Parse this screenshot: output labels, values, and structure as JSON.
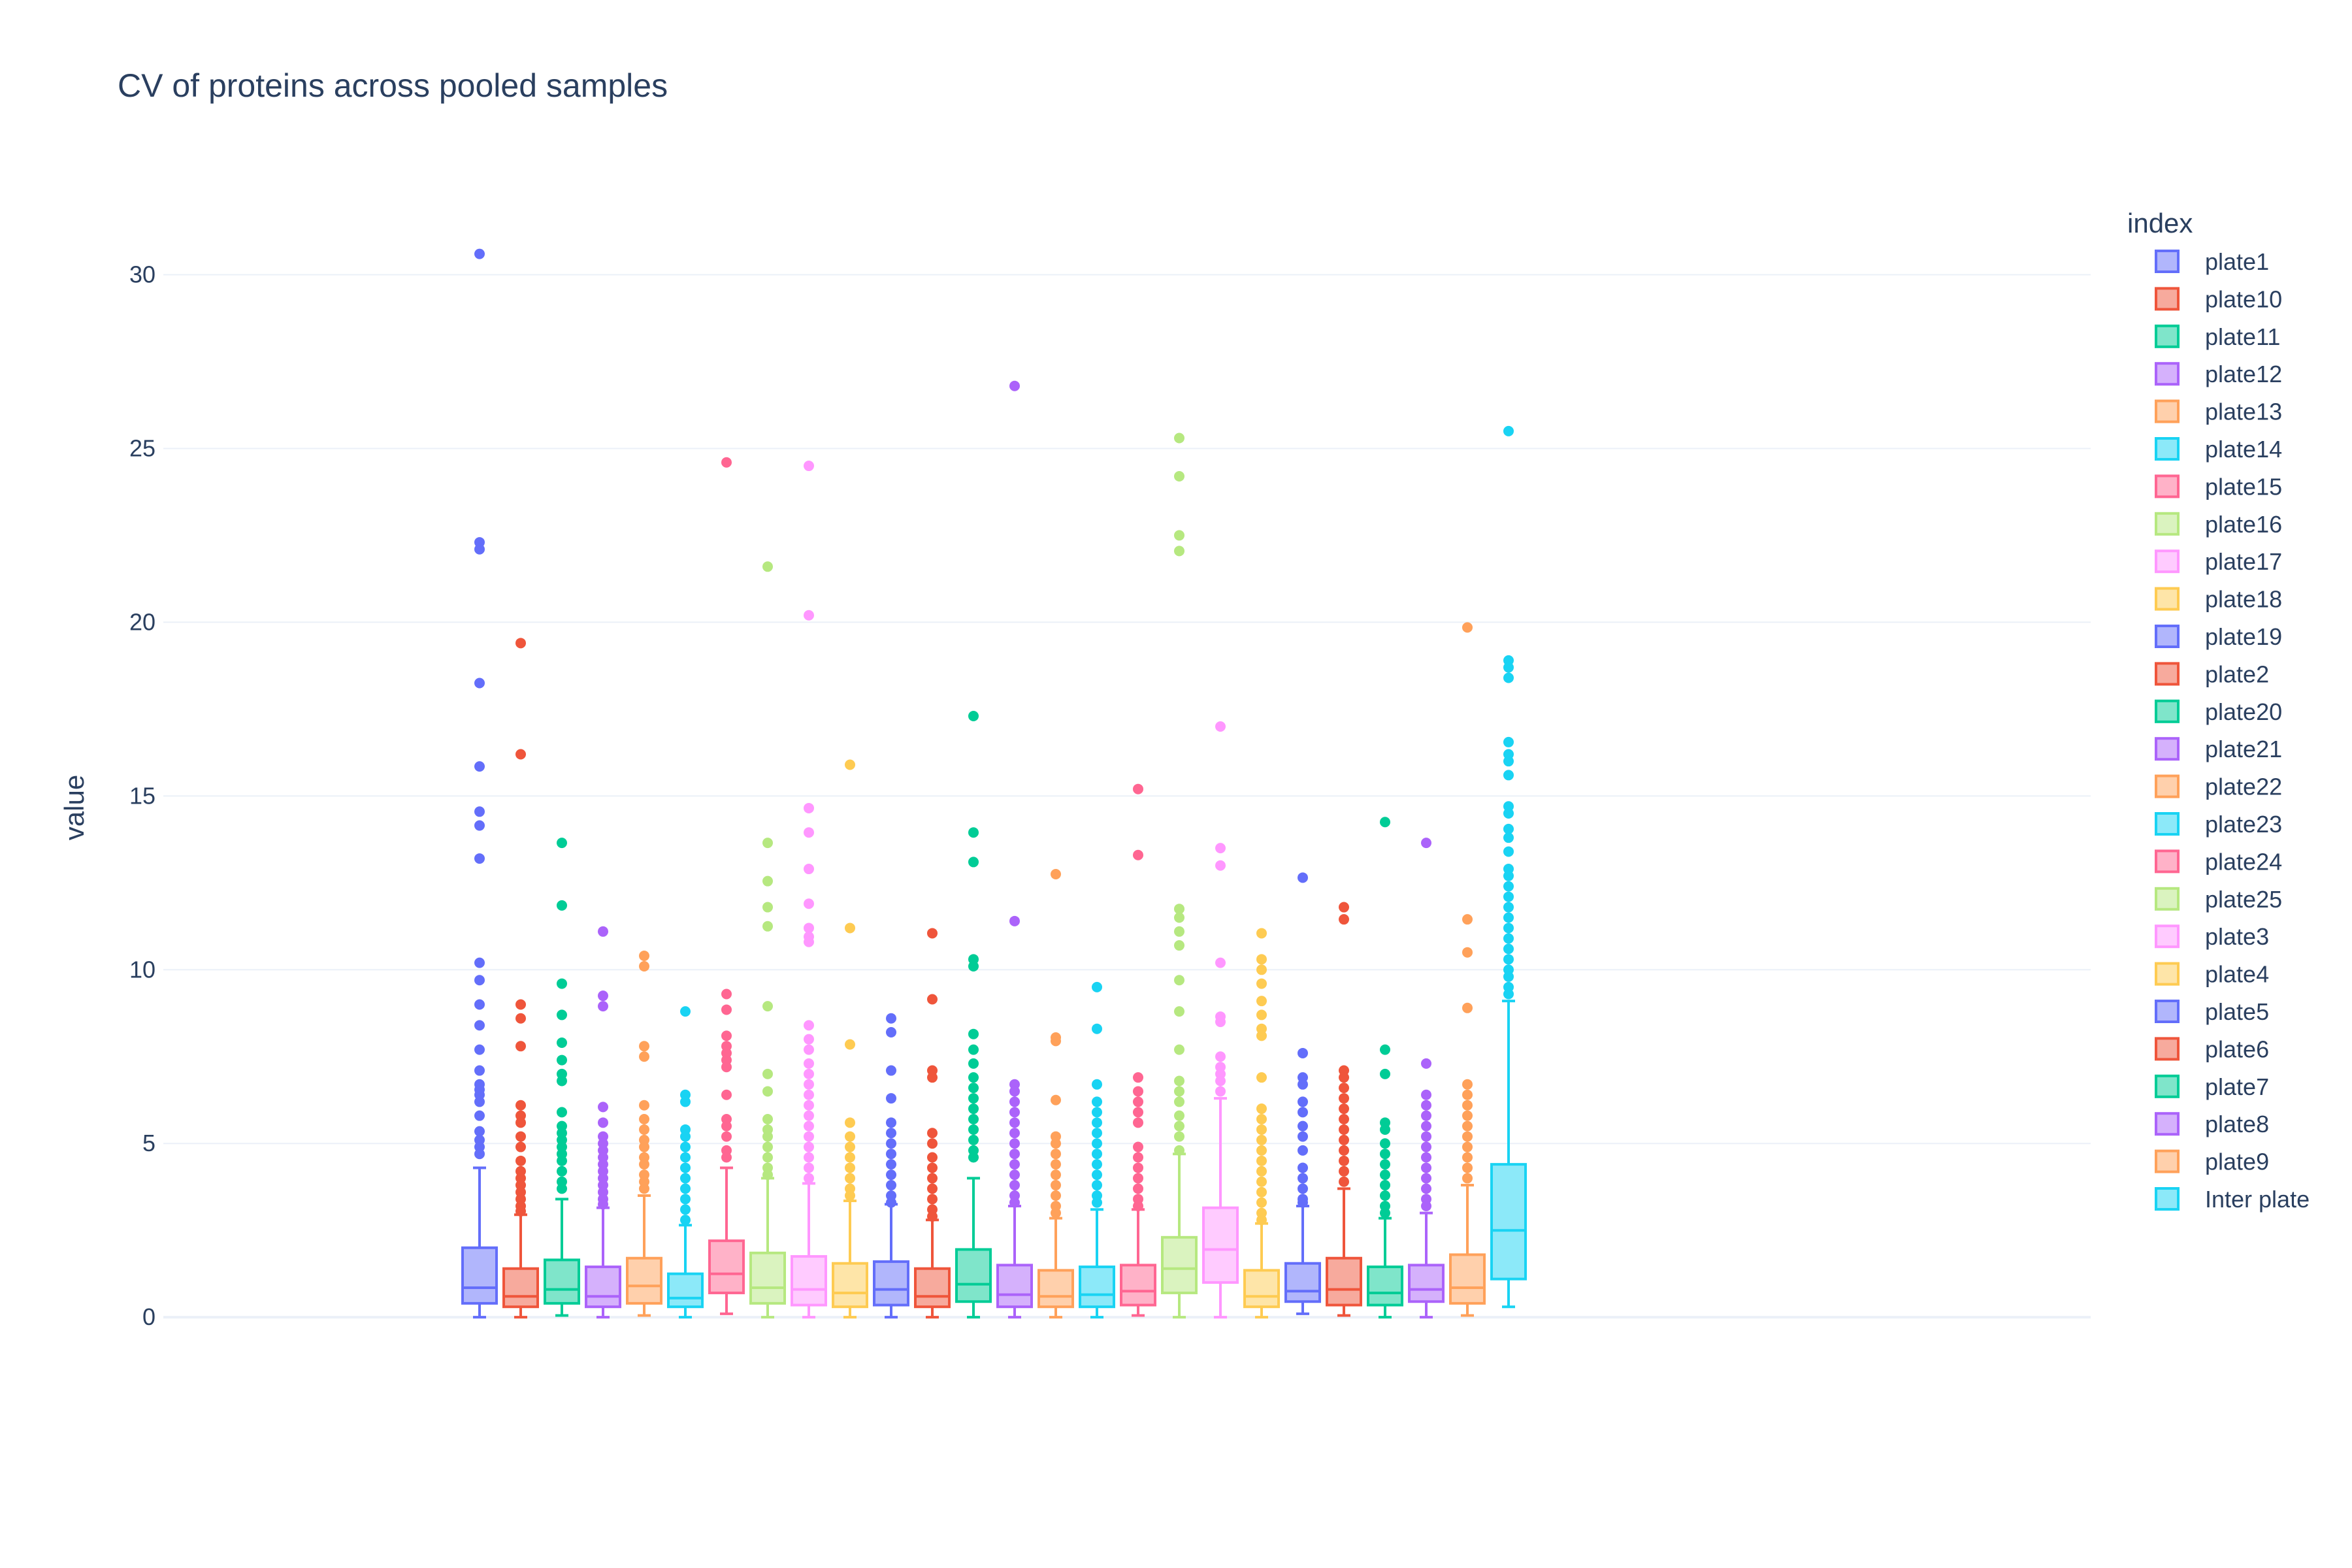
{
  "chart_data": {
    "type": "box",
    "title": "CV of proteins across pooled samples",
    "ylabel": "value",
    "xlabel": "",
    "ylim": [
      -1.2,
      33.3
    ],
    "yticks": [
      0,
      5,
      10,
      15,
      20,
      25,
      30
    ],
    "grid": true,
    "legend_title": "index",
    "legend_position": "right",
    "series": [
      {
        "name": "plate1",
        "color": "#636efa",
        "lower_whisker": 0.0,
        "q1": 0.4,
        "median": 0.85,
        "q3": 2.0,
        "upper_whisker": 4.3,
        "outliers": [
          30.6,
          22.3,
          22.1,
          18.25,
          15.85,
          14.55,
          14.15,
          13.2,
          10.2,
          9.7,
          9.0,
          8.4,
          7.7,
          7.1,
          6.7,
          6.55,
          6.4,
          6.2,
          5.8,
          5.35,
          5.1,
          4.9,
          4.7
        ]
      },
      {
        "name": "plate10",
        "color": "#EF553B",
        "lower_whisker": 0.0,
        "q1": 0.3,
        "median": 0.6,
        "q3": 1.4,
        "upper_whisker": 2.95,
        "outliers": [
          19.4,
          16.2,
          9.0,
          8.6,
          7.8,
          6.1,
          5.8,
          5.6,
          5.2,
          4.9,
          4.5,
          4.2,
          4.0,
          3.8,
          3.6,
          3.4,
          3.2,
          3.05
        ]
      },
      {
        "name": "plate11",
        "color": "#00cc96",
        "lower_whisker": 0.05,
        "q1": 0.4,
        "median": 0.8,
        "q3": 1.65,
        "upper_whisker": 3.4,
        "outliers": [
          13.65,
          11.85,
          9.6,
          8.7,
          7.9,
          7.4,
          7.0,
          6.8,
          5.9,
          5.5,
          5.3,
          5.1,
          4.9,
          4.7,
          4.5,
          4.2,
          3.9,
          3.7
        ]
      },
      {
        "name": "plate12",
        "color": "#ab63fa",
        "lower_whisker": 0.0,
        "q1": 0.3,
        "median": 0.6,
        "q3": 1.45,
        "upper_whisker": 3.15,
        "outliers": [
          11.1,
          9.25,
          8.95,
          6.05,
          5.6,
          5.2,
          5.0,
          4.8,
          4.6,
          4.4,
          4.2,
          4.0,
          3.8,
          3.6,
          3.4,
          3.25
        ]
      },
      {
        "name": "plate13",
        "color": "#FFA15A",
        "lower_whisker": 0.05,
        "q1": 0.4,
        "median": 0.9,
        "q3": 1.7,
        "upper_whisker": 3.5,
        "outliers": [
          10.4,
          10.1,
          7.8,
          7.5,
          6.1,
          5.7,
          5.4,
          5.1,
          4.9,
          4.6,
          4.4,
          4.1,
          3.9,
          3.7
        ]
      },
      {
        "name": "plate14",
        "color": "#19d3f3",
        "lower_whisker": 0.0,
        "q1": 0.3,
        "median": 0.55,
        "q3": 1.25,
        "upper_whisker": 2.65,
        "outliers": [
          8.8,
          6.4,
          6.2,
          5.4,
          5.2,
          4.9,
          4.6,
          4.3,
          4.0,
          3.7,
          3.4,
          3.1,
          2.8
        ]
      },
      {
        "name": "plate15",
        "color": "#FF6692",
        "lower_whisker": 0.1,
        "q1": 0.7,
        "median": 1.25,
        "q3": 2.2,
        "upper_whisker": 4.3,
        "outliers": [
          24.6,
          9.3,
          8.85,
          8.1,
          7.8,
          7.6,
          7.4,
          7.2,
          6.4,
          5.7,
          5.5,
          5.2,
          4.8,
          4.6
        ]
      },
      {
        "name": "plate16",
        "color": "#B6E880",
        "lower_whisker": 0.0,
        "q1": 0.4,
        "median": 0.85,
        "q3": 1.85,
        "upper_whisker": 4.0,
        "outliers": [
          21.6,
          13.65,
          12.55,
          11.8,
          11.25,
          8.95,
          7.0,
          6.5,
          5.7,
          5.4,
          5.2,
          4.9,
          4.6,
          4.3,
          4.1
        ]
      },
      {
        "name": "plate17",
        "color": "#FF97FF",
        "lower_whisker": 0.0,
        "q1": 0.35,
        "median": 0.8,
        "q3": 1.75,
        "upper_whisker": 3.85,
        "outliers": [
          24.5,
          20.2,
          14.65,
          13.95,
          12.9,
          11.9,
          11.2,
          10.95,
          10.8,
          8.4,
          8.0,
          7.7,
          7.3,
          7.0,
          6.7,
          6.4,
          6.1,
          5.8,
          5.5,
          5.2,
          4.9,
          4.6,
          4.3,
          4.0
        ]
      },
      {
        "name": "plate18",
        "color": "#FECB52",
        "lower_whisker": 0.0,
        "q1": 0.3,
        "median": 0.7,
        "q3": 1.55,
        "upper_whisker": 3.35,
        "outliers": [
          15.9,
          11.2,
          7.85,
          5.6,
          5.2,
          4.9,
          4.6,
          4.3,
          4.0,
          3.7,
          3.5
        ]
      },
      {
        "name": "plate19",
        "color": "#636efa",
        "lower_whisker": 0.0,
        "q1": 0.35,
        "median": 0.8,
        "q3": 1.6,
        "upper_whisker": 3.25,
        "outliers": [
          8.6,
          8.2,
          7.1,
          6.3,
          5.6,
          5.3,
          5.0,
          4.7,
          4.4,
          4.1,
          3.8,
          3.5,
          3.3
        ]
      },
      {
        "name": "plate2",
        "color": "#EF553B",
        "lower_whisker": 0.0,
        "q1": 0.3,
        "median": 0.6,
        "q3": 1.4,
        "upper_whisker": 2.8,
        "outliers": [
          11.05,
          9.15,
          7.1,
          6.9,
          5.3,
          5.0,
          4.6,
          4.3,
          4.0,
          3.7,
          3.4,
          3.1,
          2.9
        ]
      },
      {
        "name": "plate20",
        "color": "#00cc96",
        "lower_whisker": 0.0,
        "q1": 0.45,
        "median": 0.95,
        "q3": 1.95,
        "upper_whisker": 4.0,
        "outliers": [
          17.3,
          13.95,
          13.1,
          10.3,
          10.1,
          8.15,
          7.7,
          7.3,
          6.9,
          6.6,
          6.3,
          6.0,
          5.7,
          5.4,
          5.1,
          4.8,
          4.6
        ]
      },
      {
        "name": "plate21",
        "color": "#ab63fa",
        "lower_whisker": 0.0,
        "q1": 0.3,
        "median": 0.65,
        "q3": 1.5,
        "upper_whisker": 3.2,
        "outliers": [
          26.8,
          11.4,
          6.7,
          6.5,
          6.2,
          5.9,
          5.6,
          5.3,
          5.0,
          4.7,
          4.4,
          4.1,
          3.8,
          3.5,
          3.3
        ]
      },
      {
        "name": "plate22",
        "color": "#FFA15A",
        "lower_whisker": 0.0,
        "q1": 0.3,
        "median": 0.6,
        "q3": 1.35,
        "upper_whisker": 2.85,
        "outliers": [
          12.75,
          8.05,
          7.95,
          6.25,
          5.2,
          5.0,
          4.7,
          4.4,
          4.1,
          3.8,
          3.5,
          3.2,
          3.0
        ]
      },
      {
        "name": "plate23",
        "color": "#19d3f3",
        "lower_whisker": 0.0,
        "q1": 0.3,
        "median": 0.65,
        "q3": 1.45,
        "upper_whisker": 3.1,
        "outliers": [
          9.5,
          8.3,
          6.7,
          6.2,
          5.9,
          5.6,
          5.3,
          5.0,
          4.7,
          4.4,
          4.1,
          3.8,
          3.5,
          3.3
        ]
      },
      {
        "name": "plate24",
        "color": "#FF6692",
        "lower_whisker": 0.05,
        "q1": 0.35,
        "median": 0.75,
        "q3": 1.5,
        "upper_whisker": 3.1,
        "outliers": [
          15.2,
          13.3,
          6.9,
          6.5,
          6.2,
          5.9,
          5.6,
          4.9,
          4.6,
          4.3,
          4.0,
          3.7,
          3.4,
          3.2
        ]
      },
      {
        "name": "plate25",
        "color": "#B6E880",
        "lower_whisker": 0.0,
        "q1": 0.7,
        "median": 1.4,
        "q3": 2.3,
        "upper_whisker": 4.7,
        "outliers": [
          25.3,
          24.2,
          22.5,
          22.05,
          11.75,
          11.5,
          11.1,
          10.7,
          9.7,
          8.8,
          7.7,
          6.8,
          6.5,
          6.2,
          5.8,
          5.5,
          5.2,
          4.8
        ]
      },
      {
        "name": "plate3",
        "color": "#FF97FF",
        "lower_whisker": 0.0,
        "q1": 1.0,
        "median": 1.95,
        "q3": 3.15,
        "upper_whisker": 6.3,
        "outliers": [
          17.0,
          13.5,
          13.0,
          10.2,
          8.65,
          8.5,
          7.5,
          7.2,
          7.0,
          6.8,
          6.5
        ]
      },
      {
        "name": "plate4",
        "color": "#FECB52",
        "lower_whisker": 0.0,
        "q1": 0.3,
        "median": 0.6,
        "q3": 1.35,
        "upper_whisker": 2.7,
        "outliers": [
          11.05,
          10.3,
          10.0,
          9.6,
          9.1,
          8.7,
          8.3,
          8.1,
          6.9,
          6.0,
          5.7,
          5.4,
          5.1,
          4.8,
          4.5,
          4.2,
          3.9,
          3.6,
          3.3,
          3.0,
          2.8
        ]
      },
      {
        "name": "plate5",
        "color": "#636efa",
        "lower_whisker": 0.1,
        "q1": 0.45,
        "median": 0.75,
        "q3": 1.55,
        "upper_whisker": 3.2,
        "outliers": [
          12.65,
          7.6,
          6.9,
          6.7,
          6.2,
          5.9,
          5.5,
          5.2,
          4.8,
          4.3,
          4.0,
          3.7,
          3.4,
          3.3
        ]
      },
      {
        "name": "plate6",
        "color": "#EF553B",
        "lower_whisker": 0.05,
        "q1": 0.35,
        "median": 0.8,
        "q3": 1.7,
        "upper_whisker": 3.7,
        "outliers": [
          11.8,
          11.45,
          7.1,
          6.9,
          6.6,
          6.3,
          6.0,
          5.7,
          5.4,
          5.1,
          4.8,
          4.5,
          4.2,
          3.9
        ]
      },
      {
        "name": "plate7",
        "color": "#00cc96",
        "lower_whisker": 0.0,
        "q1": 0.35,
        "median": 0.7,
        "q3": 1.45,
        "upper_whisker": 2.85,
        "outliers": [
          14.25,
          7.7,
          7.0,
          5.6,
          5.4,
          5.0,
          4.7,
          4.4,
          4.1,
          3.8,
          3.5,
          3.2,
          3.0
        ]
      },
      {
        "name": "plate8",
        "color": "#ab63fa",
        "lower_whisker": 0.0,
        "q1": 0.45,
        "median": 0.8,
        "q3": 1.5,
        "upper_whisker": 3.0,
        "outliers": [
          13.65,
          7.3,
          6.4,
          6.1,
          5.8,
          5.5,
          5.2,
          4.9,
          4.6,
          4.3,
          4.0,
          3.7,
          3.4,
          3.2
        ]
      },
      {
        "name": "plate9",
        "color": "#FFA15A",
        "lower_whisker": 0.05,
        "q1": 0.4,
        "median": 0.85,
        "q3": 1.8,
        "upper_whisker": 3.8,
        "outliers": [
          19.85,
          11.45,
          10.5,
          8.9,
          6.7,
          6.4,
          6.1,
          5.8,
          5.5,
          5.2,
          4.9,
          4.6,
          4.3,
          4.0
        ]
      },
      {
        "name": "Inter plate",
        "color": "#19d3f3",
        "lower_whisker": 0.3,
        "q1": 1.1,
        "median": 2.5,
        "q3": 4.4,
        "upper_whisker": 9.1,
        "outliers": [
          25.5,
          18.9,
          18.7,
          18.4,
          16.55,
          16.2,
          16.0,
          15.6,
          14.7,
          14.5,
          14.05,
          13.8,
          13.4,
          12.9,
          12.7,
          12.4,
          12.1,
          11.8,
          11.5,
          11.2,
          10.9,
          10.6,
          10.3,
          10.0,
          9.8,
          9.5,
          9.3
        ]
      }
    ]
  }
}
